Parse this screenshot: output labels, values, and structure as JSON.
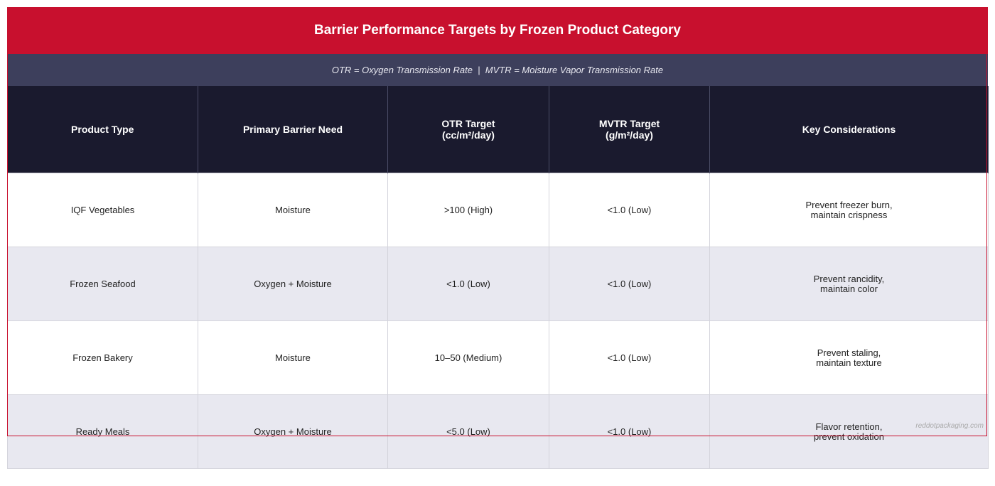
{
  "header": {
    "title": "Barrier Performance Targets by Frozen Product Category",
    "subtitle": "OTR = Oxygen Transmission Rate  |  MVTR = Moisture Vapor Transmission Rate"
  },
  "table": {
    "columns": [
      "Product Type",
      "Primary Barrier Need",
      "OTR Target\n(cc/m²/day)",
      "MVTR Target\n(g/m²/day)",
      "Key Considerations"
    ],
    "rows": [
      [
        "IQF Vegetables",
        "Moisture",
        ">100 (High)",
        "<1.0 (Low)",
        "Prevent freezer burn,\nmaintain crispness"
      ],
      [
        "Frozen Seafood",
        "Oxygen + Moisture",
        "<1.0 (Low)",
        "<1.0 (Low)",
        "Prevent rancidity,\nmaintain color"
      ],
      [
        "Frozen Bakery",
        "Moisture",
        "10–50 (Medium)",
        "<1.0 (Low)",
        "Prevent staling,\nmaintain texture"
      ],
      [
        "Ready Meals",
        "Oxygen + Moisture",
        "<5.0 (Low)",
        "<1.0 (Low)",
        "Flavor retention,\nprevent oxidation"
      ]
    ]
  },
  "watermark": "reddotpackaging.com"
}
